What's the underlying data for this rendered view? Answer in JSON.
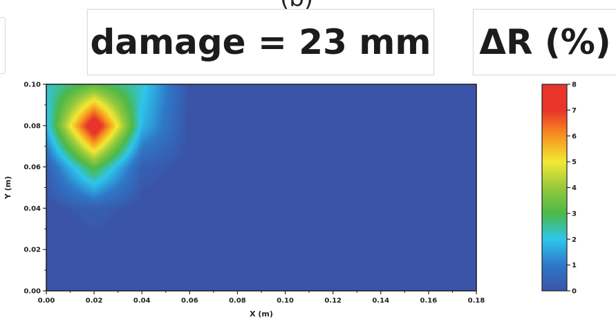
{
  "header": {
    "partial_label": "(b)",
    "title": "damage = 23 mm",
    "colorbar_title": "ΔR (%)"
  },
  "chart_data": {
    "type": "heatmap",
    "title": "damage = 23 mm",
    "xlabel": "X (m)",
    "ylabel": "Y (m)",
    "xlim": [
      0.0,
      0.18
    ],
    "ylim": [
      0.0,
      0.1
    ],
    "x_ticks": [
      "0.00",
      "0.02",
      "0.04",
      "0.06",
      "0.08",
      "0.10",
      "0.12",
      "0.14",
      "0.16",
      "0.18"
    ],
    "y_ticks": [
      "0.00",
      "0.02",
      "0.04",
      "0.06",
      "0.08",
      "0.10"
    ],
    "colorbar": {
      "label": "ΔR (%)",
      "range": [
        0,
        8
      ],
      "ticks": [
        "0",
        "1",
        "2",
        "3",
        "4",
        "5",
        "6",
        "7",
        "8"
      ],
      "colors": [
        "#3a54a8",
        "#2f78c8",
        "#2ec6ec",
        "#4cb848",
        "#97c93d",
        "#f3e933",
        "#f7931e",
        "#e8342a",
        "#e8342a"
      ]
    },
    "peak": {
      "x": 0.02,
      "y": 0.08,
      "value": 8
    },
    "grid": [
      {
        "x": 0.0,
        "values": [
          0,
          0,
          0,
          0.3,
          1.8,
          2.2
        ]
      },
      {
        "x": 0.02,
        "values": [
          0,
          0,
          0.3,
          3.2,
          8.0,
          3.2
        ]
      },
      {
        "x": 0.04,
        "values": [
          0,
          0,
          0,
          0.3,
          1.8,
          2.2
        ]
      },
      {
        "x": 0.06,
        "values": [
          0,
          0,
          0,
          0,
          0,
          0
        ]
      },
      {
        "x": 0.08,
        "values": [
          0,
          0,
          0,
          0,
          0,
          0
        ]
      },
      {
        "x": 0.1,
        "values": [
          0,
          0,
          0,
          0,
          0,
          0
        ]
      },
      {
        "x": 0.12,
        "values": [
          0,
          0,
          0,
          0,
          0,
          0
        ]
      },
      {
        "x": 0.14,
        "values": [
          0,
          0,
          0,
          0,
          0,
          0
        ]
      },
      {
        "x": 0.16,
        "values": [
          0,
          0,
          0,
          0,
          0,
          0
        ]
      },
      {
        "x": 0.18,
        "values": [
          0,
          0,
          0,
          0,
          0,
          0
        ]
      }
    ],
    "grid_y": [
      0.0,
      0.02,
      0.04,
      0.06,
      0.08,
      0.1
    ]
  }
}
